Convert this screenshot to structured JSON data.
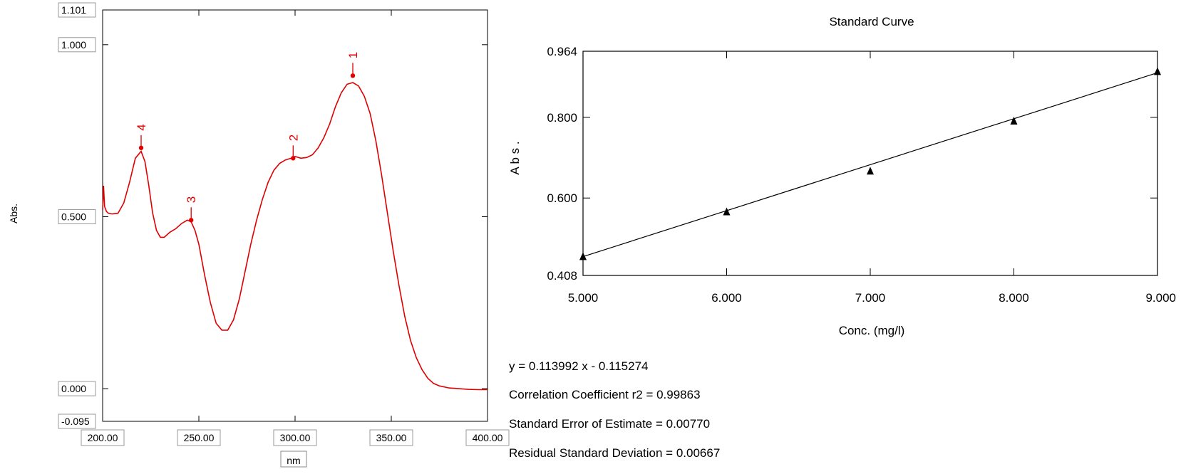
{
  "chart_data": [
    {
      "type": "line",
      "xlabel": "nm",
      "ylabel": "Abs.",
      "xlim": [
        200,
        400
      ],
      "ylim": [
        -0.095,
        1.101
      ],
      "x_ticks": [
        "200.00",
        "250.00",
        "300.00",
        "350.00",
        "400.00"
      ],
      "y_ticks": [
        "1.101",
        "1.000",
        "0.500",
        "0.000",
        "-0.095"
      ],
      "line_color": "#e00000",
      "series": [
        {
          "x": [
            200,
            200.5,
            201,
            202,
            203,
            205,
            208,
            211,
            214,
            217,
            220,
            222,
            224,
            226,
            228,
            230,
            232,
            235,
            238,
            241,
            244,
            246,
            248,
            250,
            253,
            256,
            259,
            262,
            265,
            268,
            271,
            274,
            277,
            280,
            283,
            286,
            289,
            292,
            295,
            298,
            300,
            303,
            306,
            309,
            312,
            315,
            318,
            321,
            324,
            327,
            330,
            333,
            336,
            339,
            342,
            345,
            348,
            351,
            354,
            357,
            360,
            363,
            366,
            369,
            372,
            375,
            380,
            385,
            390,
            395,
            400
          ],
          "y": [
            0.52,
            0.59,
            0.53,
            0.515,
            0.51,
            0.508,
            0.51,
            0.54,
            0.6,
            0.67,
            0.69,
            0.66,
            0.59,
            0.51,
            0.46,
            0.44,
            0.44,
            0.455,
            0.465,
            0.48,
            0.49,
            0.485,
            0.46,
            0.42,
            0.33,
            0.25,
            0.19,
            0.17,
            0.17,
            0.2,
            0.26,
            0.34,
            0.42,
            0.49,
            0.55,
            0.6,
            0.635,
            0.655,
            0.665,
            0.67,
            0.675,
            0.67,
            0.672,
            0.68,
            0.7,
            0.73,
            0.77,
            0.82,
            0.86,
            0.885,
            0.89,
            0.88,
            0.85,
            0.8,
            0.72,
            0.62,
            0.51,
            0.4,
            0.3,
            0.21,
            0.14,
            0.09,
            0.055,
            0.03,
            0.015,
            0.008,
            0.002,
            0.0,
            -0.002,
            -0.003,
            -0.003
          ]
        }
      ],
      "peaks": [
        {
          "label": "1",
          "x": 330,
          "y": 0.91
        },
        {
          "label": "2",
          "x": 299,
          "y": 0.67
        },
        {
          "label": "3",
          "x": 246,
          "y": 0.49
        },
        {
          "label": "4",
          "x": 220,
          "y": 0.7
        }
      ]
    },
    {
      "type": "scatter",
      "title": "Standard Curve",
      "xlabel": "Conc. (mg/l)",
      "ylabel": "A b s .",
      "xlim": [
        5.0,
        9.0
      ],
      "ylim": [
        0.408,
        0.964
      ],
      "x_ticks": [
        "5.000",
        "6.000",
        "7.000",
        "8.000",
        "9.000"
      ],
      "y_ticks": [
        "0.964",
        "0.800",
        "0.600",
        "0.408"
      ],
      "points": {
        "x": [
          5.0,
          6.0,
          7.0,
          8.0,
          9.0
        ],
        "y": [
          0.455,
          0.566,
          0.667,
          0.791,
          0.914
        ]
      },
      "fit_line": {
        "slope": 0.113992,
        "intercept": -0.115274
      }
    }
  ],
  "stats": {
    "equation": "y = 0.113992 x - 0.115274",
    "correlation": "Correlation Coefficient r2 = 0.99863",
    "std_error": "Standard Error of Estimate = 0.00770",
    "residual": "Residual Standard Deviation = 0.00667"
  }
}
